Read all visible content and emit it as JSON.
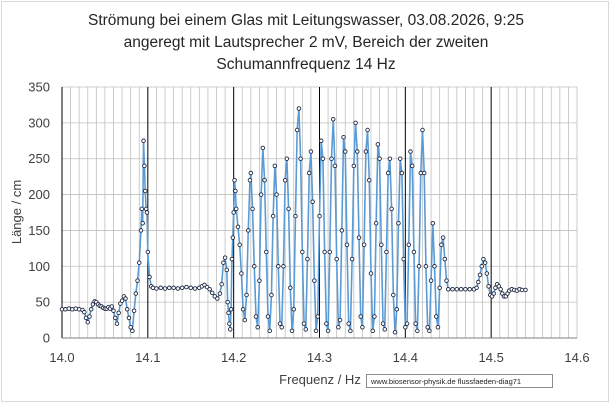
{
  "title": {
    "line1": "Strömung bei einem Glas mit  Leitungswasser, 03.08.2026, 9:25",
    "line2": "angeregt mit Lautsprecher 2 mV,  Bereich der zweiten",
    "line3": "Schumannfrequenz 14 Hz"
  },
  "credit": "www.biosensor-physik.de  flussfaeden-diag71",
  "colors": {
    "line": "#5b9bd5",
    "marker": "#1f2a44",
    "grid": "#bfbfbf",
    "major": "#000000"
  },
  "chart_data": {
    "type": "line",
    "title": "Strömung bei einem Glas mit  Leitungswasser, 03.08.2026, 9:25 angeregt mit Lautsprecher 2 mV,  Bereich der zweiten Schumannfrequenz 14 Hz",
    "xlabel": "Frequenz / Hz",
    "ylabel": "Länge / cm",
    "xlim": [
      14.0,
      14.6
    ],
    "ylim": [
      0,
      350
    ],
    "x_ticks": [
      "14.0",
      "14.1",
      "14.2",
      "14.3",
      "14.4",
      "14.5",
      "14.6"
    ],
    "y_ticks": [
      "0",
      "50",
      "100",
      "150",
      "200",
      "250",
      "300",
      "350"
    ],
    "grid": true,
    "markers": true,
    "series": [
      {
        "name": "",
        "points": [
          [
            14.0,
            40
          ],
          [
            14.004,
            40
          ],
          [
            14.008,
            41
          ],
          [
            14.012,
            40
          ],
          [
            14.016,
            41
          ],
          [
            14.02,
            40
          ],
          [
            14.024,
            39
          ],
          [
            14.026,
            36
          ],
          [
            14.028,
            28
          ],
          [
            14.03,
            22
          ],
          [
            14.032,
            30
          ],
          [
            14.034,
            40
          ],
          [
            14.036,
            47
          ],
          [
            14.038,
            51
          ],
          [
            14.04,
            50
          ],
          [
            14.042,
            47
          ],
          [
            14.044,
            45
          ],
          [
            14.046,
            44
          ],
          [
            14.048,
            42
          ],
          [
            14.05,
            41
          ],
          [
            14.052,
            41
          ],
          [
            14.054,
            43
          ],
          [
            14.056,
            41
          ],
          [
            14.058,
            44
          ],
          [
            14.06,
            38
          ],
          [
            14.062,
            28
          ],
          [
            14.064,
            20
          ],
          [
            14.066,
            35
          ],
          [
            14.068,
            48
          ],
          [
            14.07,
            52
          ],
          [
            14.072,
            58
          ],
          [
            14.074,
            55
          ],
          [
            14.076,
            40
          ],
          [
            14.078,
            28
          ],
          [
            14.08,
            15
          ],
          [
            14.082,
            10
          ],
          [
            14.084,
            38
          ],
          [
            14.086,
            62
          ],
          [
            14.088,
            80
          ],
          [
            14.09,
            105
          ],
          [
            14.092,
            150
          ],
          [
            14.093,
            180
          ],
          [
            14.094,
            160
          ],
          [
            14.095,
            275
          ],
          [
            14.096,
            240
          ],
          [
            14.097,
            205
          ],
          [
            14.098,
            180
          ],
          [
            14.099,
            175
          ],
          [
            14.1,
            120
          ],
          [
            14.102,
            85
          ],
          [
            14.104,
            72
          ],
          [
            14.106,
            70
          ],
          [
            14.11,
            69
          ],
          [
            14.115,
            70
          ],
          [
            14.12,
            69
          ],
          [
            14.125,
            70
          ],
          [
            14.13,
            70
          ],
          [
            14.135,
            69
          ],
          [
            14.14,
            70
          ],
          [
            14.145,
            71
          ],
          [
            14.15,
            70
          ],
          [
            14.155,
            69
          ],
          [
            14.16,
            70
          ],
          [
            14.163,
            72
          ],
          [
            14.166,
            74
          ],
          [
            14.169,
            71
          ],
          [
            14.172,
            68
          ],
          [
            14.175,
            63
          ],
          [
            14.178,
            58
          ],
          [
            14.181,
            55
          ],
          [
            14.184,
            62
          ],
          [
            14.186,
            75
          ],
          [
            14.188,
            105
          ],
          [
            14.19,
            112
          ],
          [
            14.192,
            95
          ],
          [
            14.193,
            50
          ],
          [
            14.194,
            35
          ],
          [
            14.195,
            20
          ],
          [
            14.196,
            12
          ],
          [
            14.197,
            40
          ],
          [
            14.198,
            110
          ],
          [
            14.199,
            140
          ],
          [
            14.2,
            175
          ],
          [
            14.201,
            220
          ],
          [
            14.202,
            205
          ],
          [
            14.203,
            180
          ],
          [
            14.205,
            155
          ],
          [
            14.207,
            130
          ],
          [
            14.209,
            90
          ],
          [
            14.211,
            40
          ],
          [
            14.213,
            25
          ],
          [
            14.215,
            60
          ],
          [
            14.217,
            150
          ],
          [
            14.219,
            220
          ],
          [
            14.22,
            230
          ],
          [
            14.222,
            180
          ],
          [
            14.224,
            100
          ],
          [
            14.226,
            30
          ],
          [
            14.228,
            15
          ],
          [
            14.23,
            80
          ],
          [
            14.232,
            200
          ],
          [
            14.234,
            265
          ],
          [
            14.236,
            220
          ],
          [
            14.238,
            120
          ],
          [
            14.24,
            30
          ],
          [
            14.242,
            10
          ],
          [
            14.244,
            60
          ],
          [
            14.246,
            170
          ],
          [
            14.248,
            240
          ],
          [
            14.25,
            200
          ],
          [
            14.252,
            100
          ],
          [
            14.254,
            20
          ],
          [
            14.256,
            15
          ],
          [
            14.258,
            100
          ],
          [
            14.26,
            220
          ],
          [
            14.262,
            250
          ],
          [
            14.264,
            180
          ],
          [
            14.266,
            70
          ],
          [
            14.268,
            10
          ],
          [
            14.27,
            40
          ],
          [
            14.272,
            170
          ],
          [
            14.274,
            290
          ],
          [
            14.276,
            320
          ],
          [
            14.278,
            250
          ],
          [
            14.28,
            120
          ],
          [
            14.282,
            20
          ],
          [
            14.284,
            12
          ],
          [
            14.286,
            110
          ],
          [
            14.288,
            230
          ],
          [
            14.29,
            260
          ],
          [
            14.292,
            190
          ],
          [
            14.294,
            80
          ],
          [
            14.296,
            10
          ],
          [
            14.298,
            30
          ],
          [
            14.3,
            170
          ],
          [
            14.302,
            275
          ],
          [
            14.304,
            250
          ],
          [
            14.306,
            120
          ],
          [
            14.308,
            20
          ],
          [
            14.31,
            10
          ],
          [
            14.312,
            120
          ],
          [
            14.314,
            250
          ],
          [
            14.316,
            305
          ],
          [
            14.318,
            240
          ],
          [
            14.32,
            110
          ],
          [
            14.322,
            15
          ],
          [
            14.324,
            25
          ],
          [
            14.326,
            150
          ],
          [
            14.328,
            280
          ],
          [
            14.33,
            260
          ],
          [
            14.332,
            130
          ],
          [
            14.334,
            20
          ],
          [
            14.336,
            10
          ],
          [
            14.338,
            110
          ],
          [
            14.34,
            240
          ],
          [
            14.342,
            300
          ],
          [
            14.344,
            260
          ],
          [
            14.346,
            140
          ],
          [
            14.348,
            30
          ],
          [
            14.35,
            15
          ],
          [
            14.352,
            130
          ],
          [
            14.354,
            260
          ],
          [
            14.356,
            290
          ],
          [
            14.358,
            220
          ],
          [
            14.36,
            90
          ],
          [
            14.362,
            10
          ],
          [
            14.364,
            30
          ],
          [
            14.366,
            160
          ],
          [
            14.368,
            270
          ],
          [
            14.37,
            250
          ],
          [
            14.372,
            130
          ],
          [
            14.374,
            20
          ],
          [
            14.376,
            12
          ],
          [
            14.378,
            120
          ],
          [
            14.38,
            230
          ],
          [
            14.382,
            250
          ],
          [
            14.384,
            180
          ],
          [
            14.386,
            60
          ],
          [
            14.388,
            8
          ],
          [
            14.39,
            40
          ],
          [
            14.392,
            160
          ],
          [
            14.394,
            250
          ],
          [
            14.396,
            230
          ],
          [
            14.398,
            110
          ],
          [
            14.4,
            15
          ],
          [
            14.402,
            20
          ],
          [
            14.404,
            130
          ],
          [
            14.406,
            260
          ],
          [
            14.408,
            240
          ],
          [
            14.41,
            120
          ],
          [
            14.412,
            20
          ],
          [
            14.414,
            10
          ],
          [
            14.416,
            100
          ],
          [
            14.418,
            230
          ],
          [
            14.42,
            290
          ],
          [
            14.422,
            230
          ],
          [
            14.424,
            100
          ],
          [
            14.426,
            15
          ],
          [
            14.428,
            10
          ],
          [
            14.43,
            80
          ],
          [
            14.432,
            160
          ],
          [
            14.434,
            100
          ],
          [
            14.436,
            30
          ],
          [
            14.438,
            15
          ],
          [
            14.44,
            70
          ],
          [
            14.442,
            130
          ],
          [
            14.444,
            140
          ],
          [
            14.446,
            110
          ],
          [
            14.448,
            80
          ],
          [
            14.45,
            68
          ],
          [
            14.455,
            68
          ],
          [
            14.46,
            68
          ],
          [
            14.465,
            68
          ],
          [
            14.47,
            68
          ],
          [
            14.475,
            68
          ],
          [
            14.48,
            68
          ],
          [
            14.483,
            70
          ],
          [
            14.485,
            78
          ],
          [
            14.487,
            88
          ],
          [
            14.489,
            100
          ],
          [
            14.491,
            110
          ],
          [
            14.493,
            105
          ],
          [
            14.495,
            90
          ],
          [
            14.497,
            72
          ],
          [
            14.499,
            60
          ],
          [
            14.501,
            58
          ],
          [
            14.503,
            62
          ],
          [
            14.505,
            70
          ],
          [
            14.507,
            75
          ],
          [
            14.509,
            72
          ],
          [
            14.511,
            68
          ],
          [
            14.513,
            62
          ],
          [
            14.515,
            58
          ],
          [
            14.517,
            58
          ],
          [
            14.519,
            62
          ],
          [
            14.521,
            66
          ],
          [
            14.524,
            68
          ],
          [
            14.527,
            67
          ],
          [
            14.53,
            66
          ],
          [
            14.533,
            68
          ],
          [
            14.536,
            67
          ],
          [
            14.54,
            67
          ]
        ]
      }
    ]
  }
}
